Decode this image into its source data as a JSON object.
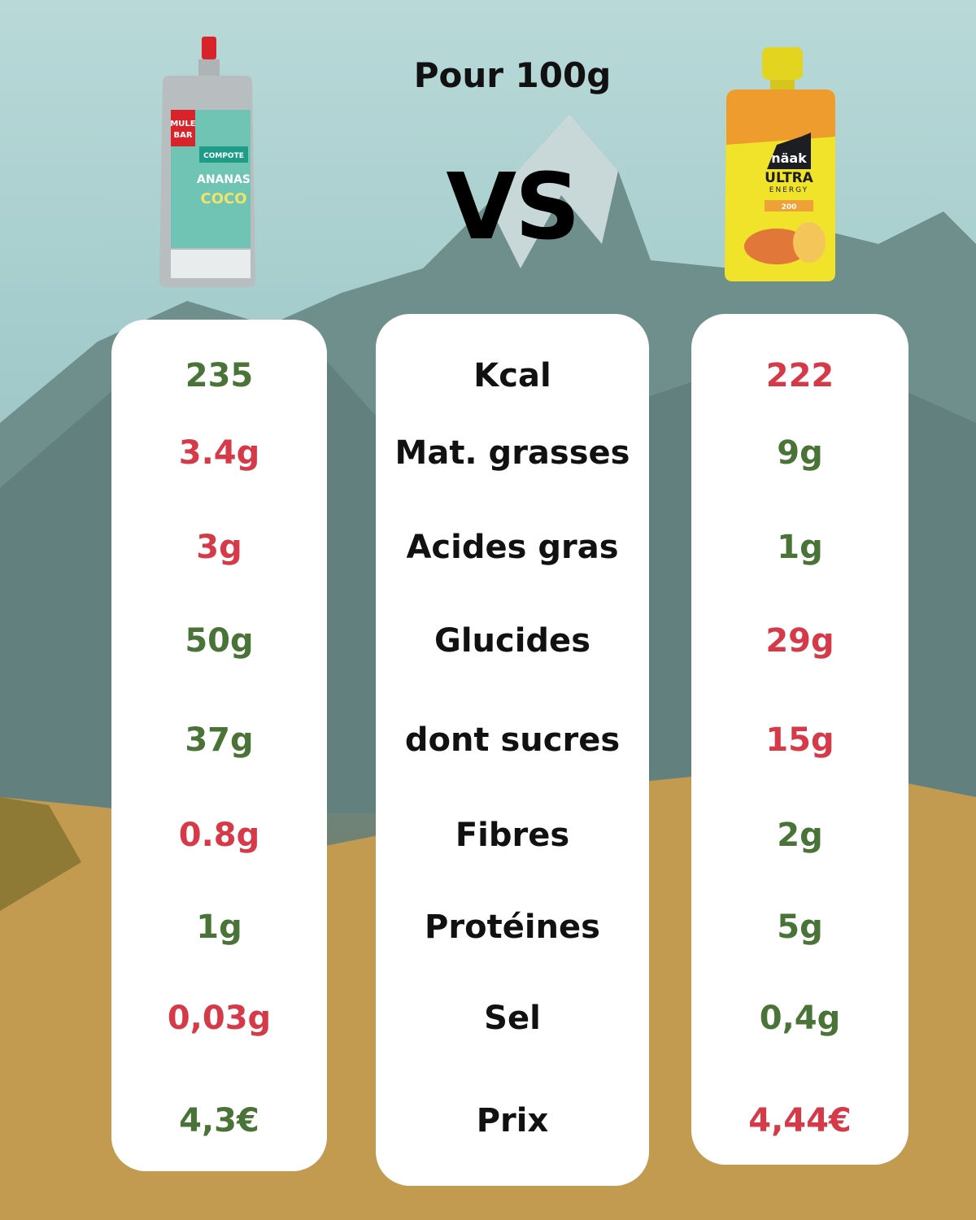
{
  "header": {
    "title": "Pour 100g",
    "vs": "VS"
  },
  "colors": {
    "better": "#4a7337",
    "worse": "#d63a48"
  },
  "products": {
    "left": {
      "brand": "MULE BAR",
      "line1": "COMPOTE",
      "flavor1": "ANANAS",
      "flavor2": "COCO"
    },
    "right": {
      "brand": "näak",
      "line1": "ULTRA",
      "line2": "ENERGY",
      "dose": "200"
    }
  },
  "rows": [
    {
      "label": "Kcal",
      "left": "235",
      "left_status": "better",
      "right": "222",
      "right_status": "worse"
    },
    {
      "label": "Mat. grasses",
      "left": "3.4g",
      "left_status": "worse",
      "right": "9g",
      "right_status": "better"
    },
    {
      "label": "Acides gras",
      "left": "3g",
      "left_status": "worse",
      "right": "1g",
      "right_status": "better"
    },
    {
      "label": "Glucides",
      "left": "50g",
      "left_status": "better",
      "right": "29g",
      "right_status": "worse"
    },
    {
      "label": "dont sucres",
      "left": "37g",
      "left_status": "better",
      "right": "15g",
      "right_status": "worse"
    },
    {
      "label": "Fibres",
      "left": "0.8g",
      "left_status": "worse",
      "right": "2g",
      "right_status": "better"
    },
    {
      "label": "Protéines",
      "left": "1g",
      "left_status": "better",
      "right": "5g",
      "right_status": "better"
    },
    {
      "label": "Sel",
      "left": "0,03g",
      "left_status": "worse",
      "right": "0,4g",
      "right_status": "better"
    },
    {
      "label": "Prix",
      "left": "4,3€",
      "left_status": "better",
      "right": "4,44€",
      "right_status": "worse"
    }
  ]
}
